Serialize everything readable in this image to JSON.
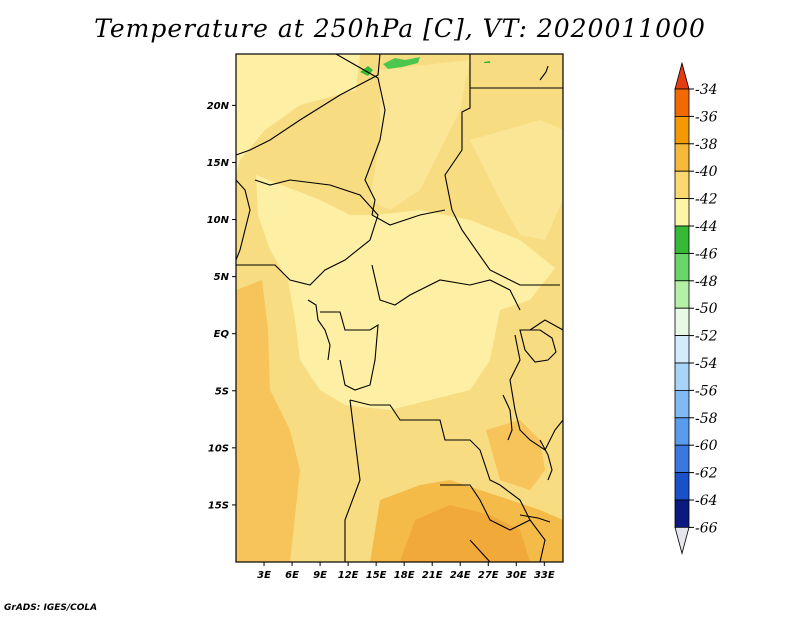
{
  "title": "Temperature at 250hPa [C], VT: 2020011000",
  "footer": "GrADS: IGES/COLA",
  "map": {
    "lat_labels": [
      "20N",
      "15N",
      "10N",
      "5N",
      "EQ",
      "5S",
      "10S",
      "15S"
    ],
    "lon_labels": [
      "3E",
      "6E",
      "9E",
      "12E",
      "15E",
      "18E",
      "21E",
      "24E",
      "27E",
      "30E",
      "33E"
    ],
    "lat_range": [
      -20,
      24.5
    ],
    "lon_range": [
      0,
      35
    ]
  },
  "colorbar": {
    "labels": [
      "-34",
      "-36",
      "-38",
      "-40",
      "-42",
      "-44",
      "-46",
      "-48",
      "-50",
      "-52",
      "-54",
      "-56",
      "-58",
      "-60",
      "-62",
      "-64",
      "-66"
    ],
    "colors": [
      "#e23c10",
      "#f06a00",
      "#f49a00",
      "#f6b93c",
      "#fbd870",
      "#fdf5a6",
      "#36b936",
      "#6ad66a",
      "#b4f0a6",
      "#e8fae6",
      "#d2ecfc",
      "#a8d4f8",
      "#80baf2",
      "#5a9cec",
      "#3a78e0",
      "#1a50c8",
      "#0c1a80",
      "#e6e6ee"
    ]
  },
  "chart_data": {
    "type": "heatmap",
    "title": "Temperature at 250hPa [C], VT: 2020011000",
    "variable": "Temperature at 250hPa",
    "units": "C",
    "valid_time": "2020011000",
    "lon_ticks": [
      "3E",
      "6E",
      "9E",
      "12E",
      "15E",
      "18E",
      "21E",
      "24E",
      "27E",
      "30E",
      "33E"
    ],
    "lat_ticks": [
      "20N",
      "15N",
      "10N",
      "5N",
      "EQ",
      "5S",
      "10S",
      "15S"
    ],
    "value_range_shown": [
      -46,
      -38
    ],
    "legend_levels": [
      -34,
      -36,
      -38,
      -40,
      -42,
      -44,
      -46,
      -48,
      -50,
      -52,
      -54,
      -56,
      -58,
      -60,
      -62,
      -64,
      -66
    ]
  }
}
